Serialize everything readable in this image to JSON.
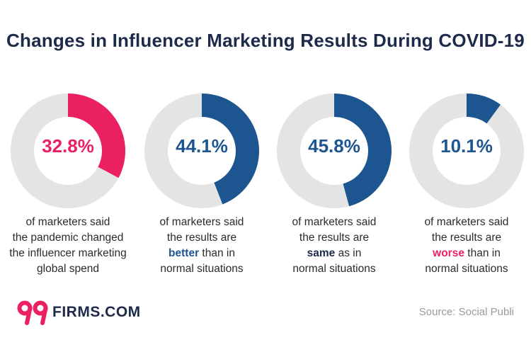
{
  "chart_data": {
    "type": "donut",
    "title": "Changes in Influencer Marketing Results During COVID-19",
    "items": [
      {
        "value": 32.8,
        "label": "32.8%",
        "color": "#ea2060",
        "lines": [
          {
            "parts": [
              {
                "text": "of marketers said"
              }
            ]
          },
          {
            "parts": [
              {
                "text": "the pandemic changed"
              }
            ]
          },
          {
            "parts": [
              {
                "text": "the influencer marketing"
              }
            ]
          },
          {
            "parts": [
              {
                "text": "global spend"
              }
            ]
          }
        ]
      },
      {
        "value": 44.1,
        "label": "44.1%",
        "color": "#1d5590",
        "lines": [
          {
            "parts": [
              {
                "text": "of marketers said"
              }
            ]
          },
          {
            "parts": [
              {
                "text": "the results are"
              }
            ]
          },
          {
            "parts": [
              {
                "text": "better",
                "bold": true,
                "color": "#1d5590"
              },
              {
                "text": " than in"
              }
            ]
          },
          {
            "parts": [
              {
                "text": "normal situations"
              }
            ]
          }
        ]
      },
      {
        "value": 45.8,
        "label": "45.8%",
        "color": "#1d5590",
        "lines": [
          {
            "parts": [
              {
                "text": "of marketers said"
              }
            ]
          },
          {
            "parts": [
              {
                "text": "the results are"
              }
            ]
          },
          {
            "parts": [
              {
                "text": "same",
                "bold": true,
                "color": "#1d2a4a"
              },
              {
                "text": " as in"
              }
            ]
          },
          {
            "parts": [
              {
                "text": "normal situations"
              }
            ]
          }
        ]
      },
      {
        "value": 10.1,
        "label": "10.1%",
        "color": "#1d5590",
        "lines": [
          {
            "parts": [
              {
                "text": "of marketers said"
              }
            ]
          },
          {
            "parts": [
              {
                "text": "the results are"
              }
            ]
          },
          {
            "parts": [
              {
                "text": "worse",
                "bold": true,
                "color": "#ea2060"
              },
              {
                "text": " than in"
              }
            ]
          },
          {
            "parts": [
              {
                "text": "normal situations"
              }
            ]
          }
        ]
      }
    ],
    "track_color": "#e4e4e4"
  },
  "logo": {
    "mark": "99",
    "text": "FIRMS.COM",
    "mark_color": "#ea2060"
  },
  "source": "Source: Social Publi"
}
